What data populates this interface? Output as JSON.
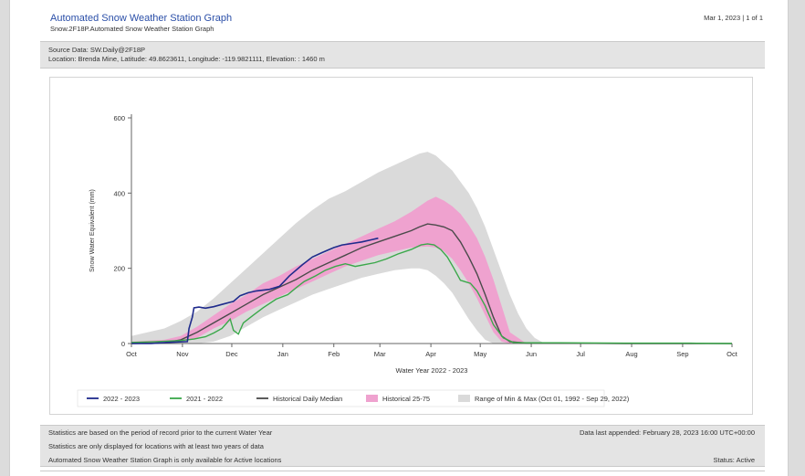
{
  "header": {
    "title": "Automated Snow Weather Station Graph",
    "subtitle": "Snow.2F18P.Automated Snow Weather Station Graph",
    "page_info": "Mar 1, 2023 | 1 of 1"
  },
  "info": {
    "source": "Source Data: SW.Daily@2F18P",
    "location": "Location: Brenda Mine, Latitude: 49.8623611, Longitude: -119.9821111, Elevation: : 1460 m"
  },
  "footer": {
    "note1": "Statistics are based on the period of record prior to the current Water Year",
    "note2": "Statistics are only displayed for locations with at least two years of data",
    "note3": "Automated Snow Weather Station Graph is only available for Active locations",
    "appended": "Data last appended: February 28, 2023 16:00 UTC+00:00",
    "status": "Status: Active"
  },
  "colors": {
    "current": "#1f2b8c",
    "previous": "#3aa84a",
    "median": "#4a4a4a",
    "p25_75": "#efa2cf",
    "minmax": "#dadada"
  },
  "chart_data": {
    "type": "line",
    "xlabel": "Water Year 2022 - 2023",
    "ylabel": "Snow Water Equivalent (mm)",
    "ylim": [
      0,
      600
    ],
    "yticks": [
      0,
      200,
      400,
      600
    ],
    "x_tick_labels": [
      "Oct",
      "Nov",
      "Dec",
      "Jan",
      "Feb",
      "Mar",
      "Apr",
      "May",
      "Jun",
      "Jul",
      "Aug",
      "Sep",
      "Oct"
    ],
    "x_tick_days": [
      0,
      31,
      61,
      92,
      123,
      151,
      182,
      212,
      243,
      273,
      304,
      335,
      365
    ],
    "x_unit": "days since Oct 1",
    "grid": false,
    "legend_position": "bottom",
    "series": [
      {
        "name": "2022 - 2023",
        "type": "line",
        "x": [
          0,
          12,
          22,
          34,
          35,
          37,
          38,
          41,
          45,
          50,
          55,
          62,
          66,
          71,
          76,
          84,
          90,
          96,
          104,
          110,
          116,
          123,
          128,
          134,
          140,
          146,
          150
        ],
        "y": [
          0,
          0,
          3,
          5,
          40,
          70,
          95,
          97,
          94,
          98,
          104,
          112,
          127,
          135,
          140,
          144,
          152,
          180,
          210,
          230,
          242,
          255,
          262,
          266,
          270,
          276,
          280
        ]
      },
      {
        "name": "2021 - 2022",
        "type": "line",
        "x": [
          0,
          15,
          30,
          38,
          45,
          50,
          55,
          58,
          60,
          62,
          65,
          68,
          74,
          80,
          88,
          95,
          100,
          105,
          112,
          118,
          124,
          130,
          136,
          142,
          148,
          155,
          162,
          170,
          176,
          180,
          184,
          188,
          192,
          196,
          200,
          206,
          210,
          215,
          220,
          226,
          232,
          240,
          260,
          300,
          340,
          365
        ],
        "y": [
          3,
          5,
          8,
          12,
          18,
          28,
          40,
          55,
          65,
          35,
          25,
          55,
          75,
          95,
          118,
          130,
          148,
          165,
          180,
          195,
          205,
          212,
          205,
          210,
          215,
          225,
          238,
          250,
          262,
          265,
          262,
          250,
          230,
          200,
          168,
          160,
          140,
          100,
          50,
          15,
          3,
          2,
          2,
          1,
          1,
          0
        ]
      },
      {
        "name": "Historical Daily Median",
        "type": "line",
        "x": [
          0,
          20,
          30,
          40,
          50,
          60,
          70,
          80,
          90,
          100,
          110,
          120,
          130,
          140,
          150,
          160,
          170,
          175,
          180,
          185,
          190,
          195,
          200,
          205,
          210,
          215,
          220,
          225,
          230,
          240,
          260,
          300,
          365
        ],
        "y": [
          0,
          2,
          10,
          30,
          55,
          80,
          105,
          130,
          150,
          170,
          195,
          215,
          235,
          255,
          270,
          285,
          300,
          310,
          318,
          315,
          310,
          300,
          270,
          230,
          185,
          130,
          70,
          20,
          5,
          1,
          1,
          0,
          0
        ]
      },
      {
        "name": "Historical 25-75",
        "type": "band",
        "x": [
          0,
          20,
          30,
          40,
          50,
          60,
          70,
          80,
          90,
          100,
          110,
          120,
          130,
          140,
          150,
          160,
          170,
          180,
          185,
          190,
          195,
          200,
          205,
          210,
          215,
          220,
          225,
          230,
          240
        ],
        "low": [
          0,
          0,
          5,
          15,
          40,
          60,
          85,
          105,
          125,
          145,
          165,
          185,
          205,
          220,
          235,
          245,
          255,
          258,
          255,
          245,
          225,
          195,
          160,
          120,
          75,
          30,
          5,
          0,
          0
        ],
        "high": [
          5,
          10,
          20,
          45,
          75,
          105,
          130,
          160,
          180,
          205,
          225,
          245,
          265,
          285,
          305,
          325,
          350,
          380,
          390,
          380,
          365,
          345,
          315,
          280,
          230,
          170,
          100,
          30,
          0
        ]
      },
      {
        "name": "Range of Min & Max (Oct 01, 1992 - Sep 29, 2022)",
        "type": "band",
        "x": [
          0,
          20,
          30,
          40,
          50,
          60,
          70,
          80,
          90,
          100,
          110,
          120,
          130,
          140,
          150,
          160,
          170,
          175,
          180,
          185,
          190,
          195,
          200,
          205,
          210,
          215,
          220,
          225,
          230,
          235,
          240,
          245,
          250,
          365
        ],
        "low": [
          0,
          0,
          0,
          0,
          5,
          20,
          45,
          70,
          90,
          110,
          130,
          145,
          160,
          175,
          185,
          195,
          200,
          200,
          195,
          180,
          160,
          135,
          100,
          65,
          35,
          10,
          0,
          0,
          0,
          0,
          0,
          0,
          0,
          0
        ],
        "high": [
          20,
          40,
          60,
          85,
          120,
          160,
          200,
          240,
          280,
          320,
          355,
          385,
          405,
          430,
          455,
          475,
          495,
          505,
          510,
          500,
          480,
          460,
          430,
          400,
          360,
          310,
          250,
          190,
          130,
          80,
          40,
          15,
          3,
          0
        ]
      }
    ]
  }
}
